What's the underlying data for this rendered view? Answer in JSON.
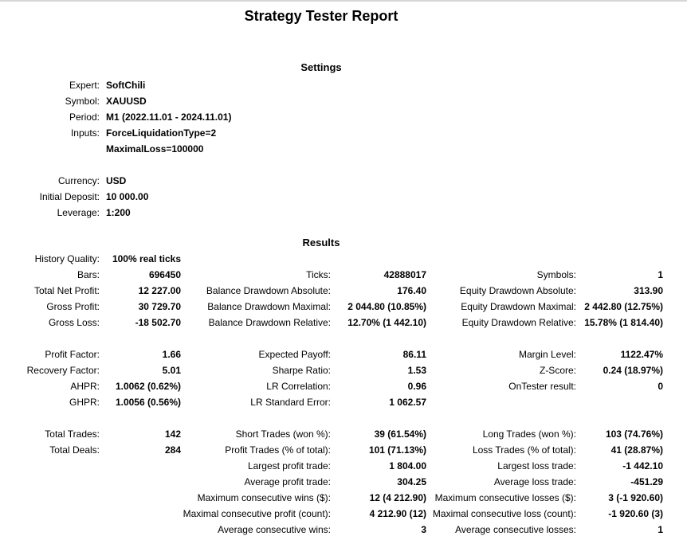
{
  "page": {
    "title": "Strategy Tester Report"
  },
  "colors": {
    "text": "#000000",
    "background": "#ffffff",
    "top_rule": "#d6d6d6"
  },
  "settings": {
    "heading": "Settings",
    "rows": [
      {
        "label": "Expert:",
        "value": "SoftChili"
      },
      {
        "label": "Symbol:",
        "value": "XAUUSD"
      },
      {
        "label": "Period:",
        "value": "M1 (2022.11.01 - 2024.11.01)"
      },
      {
        "label": "Inputs:",
        "value": "ForceLiquidationType=2"
      },
      {
        "label": "",
        "value": "MaximalLoss=100000"
      },
      {
        "label": "",
        "value": ""
      },
      {
        "label": "Currency:",
        "value": "USD"
      },
      {
        "label": "Initial Deposit:",
        "value": "10 000.00"
      },
      {
        "label": "Leverage:",
        "value": "1:200"
      }
    ]
  },
  "results": {
    "heading": "Results",
    "rows": [
      {
        "cells": [
          "History Quality:",
          "100% real ticks",
          "",
          "",
          "",
          ""
        ]
      },
      {
        "cells": [
          "Bars:",
          "696450",
          "Ticks:",
          "42888017",
          "Symbols:",
          "1"
        ]
      },
      {
        "cells": [
          "Total Net Profit:",
          "12 227.00",
          "Balance Drawdown Absolute:",
          "176.40",
          "Equity Drawdown Absolute:",
          "313.90"
        ]
      },
      {
        "cells": [
          "Gross Profit:",
          "30 729.70",
          "Balance Drawdown Maximal:",
          "2 044.80 (10.85%)",
          "Equity Drawdown Maximal:",
          "2 442.80 (12.75%)"
        ]
      },
      {
        "cells": [
          "Gross Loss:",
          "-18 502.70",
          "Balance Drawdown Relative:",
          "12.70% (1 442.10)",
          "Equity Drawdown Relative:",
          "15.78% (1 814.40)"
        ]
      },
      {
        "cells": [
          "",
          "",
          "",
          "",
          "",
          ""
        ]
      },
      {
        "cells": [
          "Profit Factor:",
          "1.66",
          "Expected Payoff:",
          "86.11",
          "Margin Level:",
          "1122.47%"
        ]
      },
      {
        "cells": [
          "Recovery Factor:",
          "5.01",
          "Sharpe Ratio:",
          "1.53",
          "Z-Score:",
          "0.24 (18.97%)"
        ]
      },
      {
        "cells": [
          "AHPR:",
          "1.0062 (0.62%)",
          "LR Correlation:",
          "0.96",
          "OnTester result:",
          "0"
        ]
      },
      {
        "cells": [
          "GHPR:",
          "1.0056 (0.56%)",
          "LR Standard Error:",
          "1 062.57",
          "",
          ""
        ]
      },
      {
        "cells": [
          "",
          "",
          "",
          "",
          "",
          ""
        ]
      },
      {
        "cells": [
          "Total Trades:",
          "142",
          "Short Trades (won %):",
          "39 (61.54%)",
          "Long Trades (won %):",
          "103 (74.76%)"
        ]
      },
      {
        "cells": [
          "Total Deals:",
          "284",
          "Profit Trades (% of total):",
          "101 (71.13%)",
          "Loss Trades (% of total):",
          "41 (28.87%)"
        ]
      },
      {
        "cells": [
          "",
          "",
          "Largest profit trade:",
          "1 804.00",
          "Largest loss trade:",
          "-1 442.10"
        ]
      },
      {
        "cells": [
          "",
          "",
          "Average profit trade:",
          "304.25",
          "Average loss trade:",
          "-451.29"
        ]
      },
      {
        "cells": [
          "",
          "",
          "Maximum consecutive wins ($):",
          "12 (4 212.90)",
          "Maximum consecutive losses ($):",
          "3 (-1 920.60)"
        ]
      },
      {
        "cells": [
          "",
          "",
          "Maximal consecutive profit (count):",
          "4 212.90 (12)",
          "Maximal consecutive loss (count):",
          "-1 920.60 (3)"
        ]
      },
      {
        "cells": [
          "",
          "",
          "Average consecutive wins:",
          "3",
          "Average consecutive losses:",
          "1"
        ]
      }
    ]
  }
}
